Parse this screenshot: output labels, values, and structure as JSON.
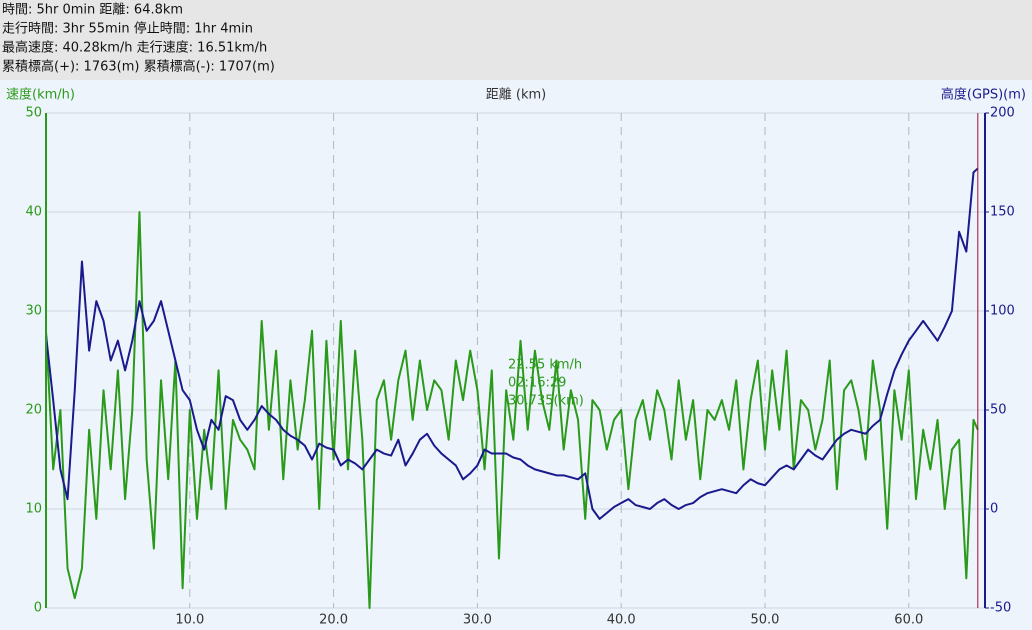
{
  "header": {
    "lines": [
      "時間: 5hr 0min 距離: 64.8km",
      "走行時間: 3hr 55min 停止時間: 1hr 4min",
      "最高速度: 40.28km/h 走行速度: 16.51km/h",
      "累積標高(+): 1763(m) 累積標高(-): 1707(m)"
    ]
  },
  "chart_data": {
    "type": "line",
    "ylabel": "速度(km/h)",
    "xlabel": "距離 (km)",
    "y2label": "高度(GPS)(m)",
    "annotation": [
      "22.55 km/h",
      "02:16:29",
      "30.735(km)"
    ],
    "xlim": [
      0,
      65.3
    ],
    "xticks": [
      {
        "value": 10,
        "label": "10.0"
      },
      {
        "value": 20,
        "label": "20.0"
      },
      {
        "value": 30,
        "label": "30.0"
      },
      {
        "value": 40,
        "label": "40.0"
      },
      {
        "value": 50,
        "label": "50.0"
      },
      {
        "value": 60,
        "label": "60.0"
      }
    ],
    "ylim": [
      0,
      50
    ],
    "yticks": [
      0,
      10,
      20,
      30,
      40,
      50
    ],
    "y2lim": [
      -50,
      200
    ],
    "y2ticks": [
      -50,
      0,
      50,
      100,
      150,
      200
    ],
    "x": [
      0,
      0.5,
      1,
      1.5,
      2,
      2.5,
      3,
      3.5,
      4,
      4.5,
      5,
      5.5,
      6,
      6.5,
      7,
      7.5,
      8,
      8.5,
      9,
      9.5,
      10,
      10.5,
      11,
      11.5,
      12,
      12.5,
      13,
      13.5,
      14,
      14.5,
      15,
      15.5,
      16,
      16.5,
      17,
      17.5,
      18,
      18.5,
      19,
      19.5,
      20,
      20.5,
      21,
      21.5,
      22,
      22.5,
      23,
      23.5,
      24,
      24.5,
      25,
      25.5,
      26,
      26.5,
      27,
      27.5,
      28,
      28.5,
      29,
      29.5,
      30,
      30.5,
      31,
      31.5,
      32,
      32.5,
      33,
      33.5,
      34,
      34.5,
      35,
      35.5,
      36,
      36.5,
      37,
      37.5,
      38,
      38.5,
      39,
      39.5,
      40,
      40.5,
      41,
      41.5,
      42,
      42.5,
      43,
      43.5,
      44,
      44.5,
      45,
      45.5,
      46,
      46.5,
      47,
      47.5,
      48,
      48.5,
      49,
      49.5,
      50,
      50.5,
      51,
      51.5,
      52,
      52.5,
      53,
      53.5,
      54,
      54.5,
      55,
      55.5,
      56,
      56.5,
      57,
      57.5,
      58,
      58.5,
      59,
      59.5,
      60,
      60.5,
      61,
      61.5,
      62,
      62.5,
      63,
      63.5,
      64,
      64.5,
      64.8
    ],
    "series": [
      {
        "color": "#2a9a1a",
        "axis": "y",
        "values": [
          28,
          14,
          20,
          4,
          1,
          4,
          18,
          9,
          22,
          14,
          24,
          11,
          20,
          40,
          15,
          6,
          23,
          13,
          25,
          2,
          20,
          9,
          18,
          12,
          24,
          10,
          19,
          17,
          16,
          14,
          29,
          18,
          26,
          13,
          23,
          16,
          21,
          28,
          10,
          27,
          15,
          29,
          14,
          26,
          17,
          0,
          21,
          23,
          17,
          23,
          26,
          19,
          25,
          20,
          23,
          22,
          17,
          25,
          21,
          26,
          22,
          14,
          24,
          5,
          22,
          17,
          27,
          18,
          26,
          21,
          18,
          25,
          16,
          22,
          19,
          9,
          21,
          20,
          16,
          19,
          20,
          12,
          19,
          21,
          17,
          22,
          20,
          15,
          23,
          17,
          21,
          13,
          20,
          19,
          21,
          18,
          23,
          14,
          21,
          25,
          16,
          24,
          18,
          26,
          14,
          21,
          20,
          16,
          19,
          25,
          12,
          22,
          23,
          20,
          15,
          25,
          20,
          8,
          22,
          17,
          24,
          11,
          18,
          14,
          19,
          10,
          16,
          17,
          3,
          19,
          18
        ]
      },
      {
        "color": "#1a1a8c",
        "axis": "y2",
        "values": [
          88,
          55,
          20,
          5,
          60,
          125,
          80,
          105,
          95,
          75,
          85,
          70,
          85,
          105,
          90,
          95,
          105,
          90,
          75,
          60,
          55,
          40,
          30,
          45,
          40,
          57,
          55,
          45,
          40,
          45,
          52,
          48,
          45,
          40,
          37,
          35,
          32,
          25,
          33,
          31,
          30,
          22,
          25,
          23,
          20,
          25,
          30,
          28,
          27,
          35,
          22,
          28,
          35,
          38,
          32,
          28,
          25,
          22,
          15,
          18,
          22,
          30,
          28,
          28,
          28,
          26,
          25,
          22,
          20,
          19,
          18,
          17,
          17,
          16,
          15,
          18,
          0,
          -5,
          -2,
          1,
          3,
          5,
          2,
          1,
          0,
          3,
          5,
          2,
          0,
          2,
          3,
          6,
          8,
          9,
          10,
          9,
          8,
          12,
          15,
          13,
          12,
          16,
          20,
          22,
          20,
          25,
          30,
          27,
          25,
          30,
          35,
          38,
          40,
          39,
          38,
          42,
          45,
          58,
          70,
          78,
          85,
          90,
          95,
          90,
          85,
          92,
          100,
          140,
          130,
          170,
          172
        ]
      }
    ],
    "grid": true
  }
}
